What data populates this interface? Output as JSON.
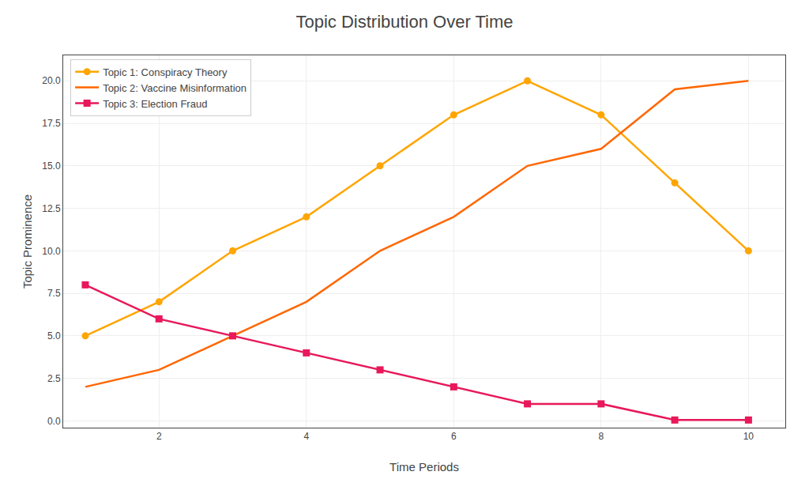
{
  "chart_data": {
    "type": "line",
    "title": "Topic Distribution Over Time",
    "xlabel": "Time Periods",
    "ylabel": "Topic Prominence",
    "x": [
      1,
      2,
      3,
      4,
      5,
      6,
      7,
      8,
      9,
      10
    ],
    "series": [
      {
        "name": "Topic 1: Conspiracy Theory",
        "color": "#FFA500",
        "marker": "circle",
        "values": [
          5,
          7,
          10,
          12,
          15,
          18,
          20,
          18,
          14,
          10
        ]
      },
      {
        "name": "Topic 2: Vaccine Misinformation",
        "color": "#FF6600",
        "marker": "none",
        "values": [
          2,
          3,
          5,
          7,
          10,
          12,
          15,
          16,
          19.5,
          20
        ]
      },
      {
        "name": "Topic 3: Election Fraud",
        "color": "#E8185A",
        "marker": "square",
        "values": [
          8,
          6,
          5,
          4,
          3,
          2,
          1.0,
          1.0,
          0.05,
          0.05
        ]
      }
    ],
    "xlim": [
      0.7,
      10.5
    ],
    "xticks": [
      2,
      4,
      6,
      8,
      10
    ],
    "ylim": [
      -0.4,
      21.5
    ],
    "yticks": [
      {
        "value": 0.0,
        "label": "0.0"
      },
      2.5,
      {
        "value": 5.0,
        "label": "5.0"
      },
      7.5,
      {
        "value": 10.0,
        "label": "10.0"
      },
      12.5,
      {
        "value": 15.0,
        "label": "15.0"
      },
      17.5,
      {
        "value": 20.0,
        "label": "20.0"
      }
    ],
    "grid": true,
    "legend": "upper left"
  }
}
